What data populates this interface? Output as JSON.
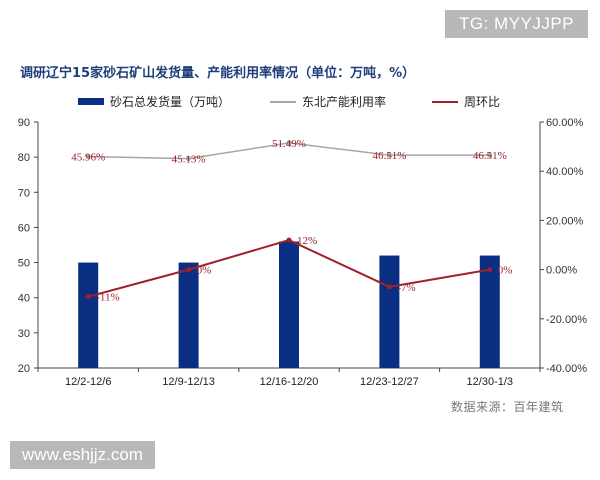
{
  "watermark_top": "TG: MYYJJPP",
  "watermark_bottom": "www.eshjjz.com",
  "source": "数据来源：百年建筑",
  "chart_data": {
    "type": "bar+line",
    "title": "调研辽宁15家砂石矿山发货量、产能利用率情况（单位：万吨，%）",
    "categories": [
      "12/2-12/6",
      "12/9-12/13",
      "12/16-12/20",
      "12/23-12/27",
      "12/30-1/3"
    ],
    "series": [
      {
        "name": "砂石总发货量（万吨）",
        "type": "bar",
        "axis": "left",
        "color": "#0a2e82",
        "values": [
          50,
          50,
          56,
          52,
          52
        ]
      },
      {
        "name": "东北产能利用率",
        "type": "line",
        "axis": "right",
        "color": "#a6a6a6",
        "values": [
          45.96,
          45.13,
          51.49,
          46.51,
          46.51
        ],
        "labels": [
          "45.96%",
          "45.13%",
          "51.49%",
          "46.51%",
          "46.51%"
        ]
      },
      {
        "name": "周环比",
        "type": "line",
        "axis": "right",
        "color": "#a0202a",
        "values": [
          -11,
          0,
          12,
          -7,
          0
        ],
        "labels": [
          "-11%",
          "0%",
          "12%",
          "-7%",
          "0%"
        ]
      }
    ],
    "y_left": {
      "min": 20,
      "max": 90,
      "ticks": [
        "20",
        "30",
        "40",
        "50",
        "60",
        "70",
        "80",
        "90"
      ]
    },
    "y_right": {
      "min": -40,
      "max": 60,
      "ticks": [
        "-40.00%",
        "-20.00%",
        "0.00%",
        "20.00%",
        "40.00%",
        "60.00%"
      ]
    },
    "grid": false,
    "legend_position": "top"
  }
}
